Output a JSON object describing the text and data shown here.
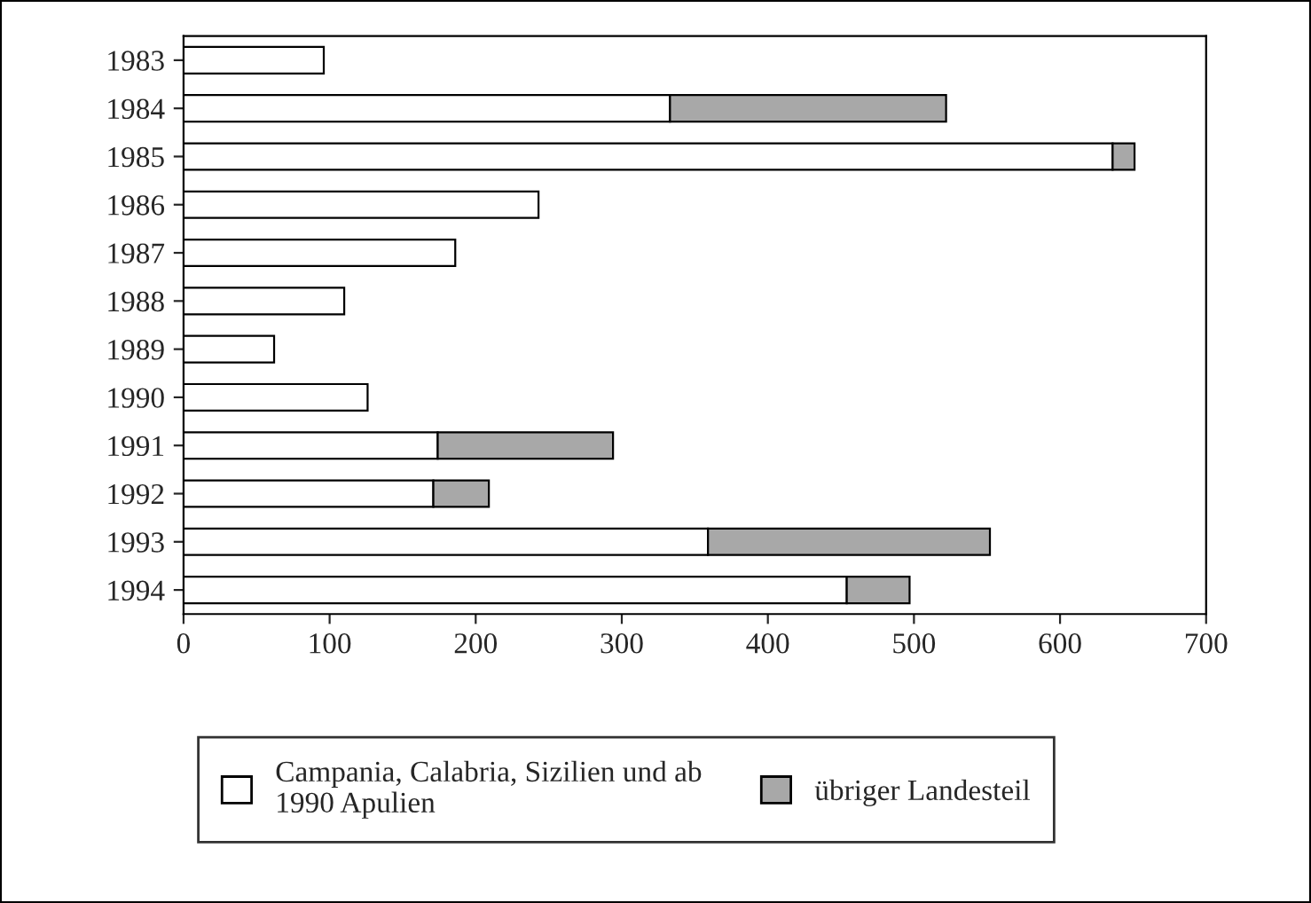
{
  "chart_data": {
    "type": "bar",
    "orientation": "horizontal",
    "stacked": true,
    "categories": [
      "1983",
      "1984",
      "1985",
      "1986",
      "1987",
      "1988",
      "1989",
      "1990",
      "1991",
      "1992",
      "1993",
      "1994"
    ],
    "series": [
      {
        "name": "Campania, Calabria, Sizilien und ab\n1990 Apulien",
        "color": "#ffffff",
        "values": [
          96,
          333,
          636,
          243,
          186,
          110,
          62,
          126,
          174,
          171,
          359,
          454
        ]
      },
      {
        "name": "übriger Landesteil",
        "color": "#a8a8a8",
        "values": [
          0,
          189,
          15,
          0,
          0,
          0,
          0,
          0,
          120,
          38,
          193,
          43
        ]
      }
    ],
    "xlim": [
      0,
      700
    ],
    "xticks": [
      0,
      100,
      200,
      300,
      400,
      500,
      600,
      700
    ],
    "grid": false,
    "legend": "bottom"
  }
}
